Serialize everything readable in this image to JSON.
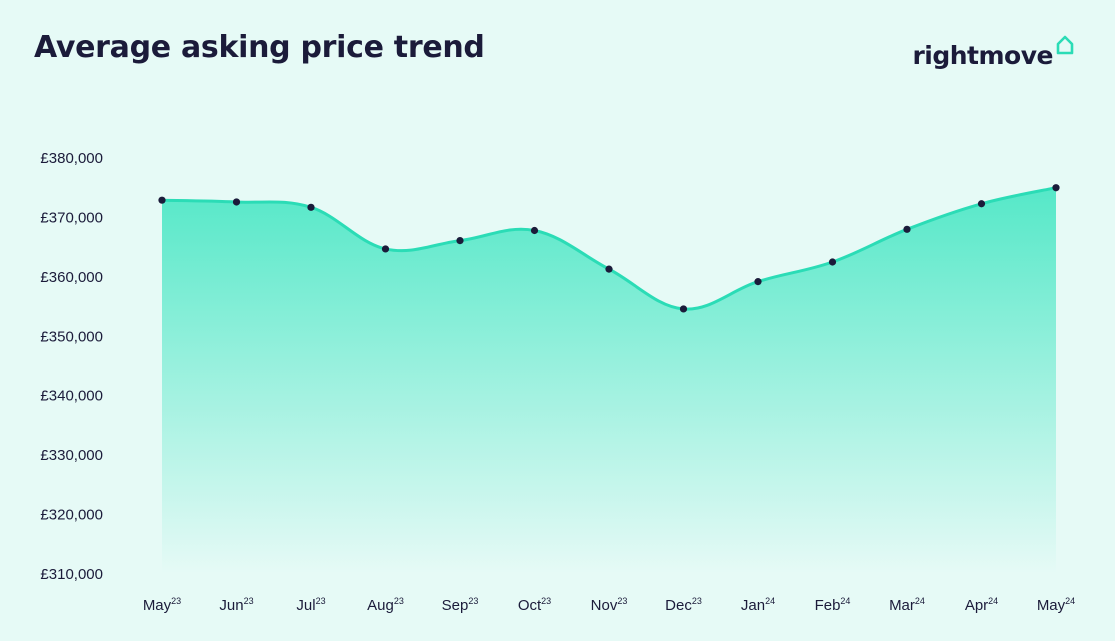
{
  "header": {
    "title": "Average asking price trend",
    "brand": "rightmove",
    "brand_icon": "house-icon"
  },
  "colors": {
    "background": "#e6faf6",
    "line": "#2bdcb6",
    "fill_top": "#55e8c8",
    "fill_bottom": "#e6faf6",
    "point": "#1b1b3a",
    "text": "#1b1b3a"
  },
  "chart_data": {
    "type": "area",
    "title": "Average asking price trend",
    "xlabel": "",
    "ylabel": "",
    "grid": false,
    "x": [
      {
        "month": "May",
        "year": "23"
      },
      {
        "month": "Jun",
        "year": "23"
      },
      {
        "month": "Jul",
        "year": "23"
      },
      {
        "month": "Aug",
        "year": "23"
      },
      {
        "month": "Sep",
        "year": "23"
      },
      {
        "month": "Oct",
        "year": "23"
      },
      {
        "month": "Nov",
        "year": "23"
      },
      {
        "month": "Dec",
        "year": "23"
      },
      {
        "month": "Jan",
        "year": "24"
      },
      {
        "month": "Feb",
        "year": "24"
      },
      {
        "month": "Mar",
        "year": "24"
      },
      {
        "month": "Apr",
        "year": "24"
      },
      {
        "month": "May",
        "year": "24"
      }
    ],
    "values": [
      372900,
      372600,
      371700,
      364700,
      366100,
      367800,
      361300,
      354600,
      359200,
      362500,
      368000,
      372300,
      375000
    ],
    "ylim": [
      310000,
      380000
    ],
    "yticks": [
      {
        "value": 380000,
        "label": "£380,000"
      },
      {
        "value": 370000,
        "label": "£370,000"
      },
      {
        "value": 360000,
        "label": "£360,000"
      },
      {
        "value": 350000,
        "label": "£350,000"
      },
      {
        "value": 340000,
        "label": "£340,000"
      },
      {
        "value": 330000,
        "label": "£330,000"
      },
      {
        "value": 320000,
        "label": "£320,000"
      },
      {
        "value": 310000,
        "label": "£310,000"
      }
    ]
  }
}
